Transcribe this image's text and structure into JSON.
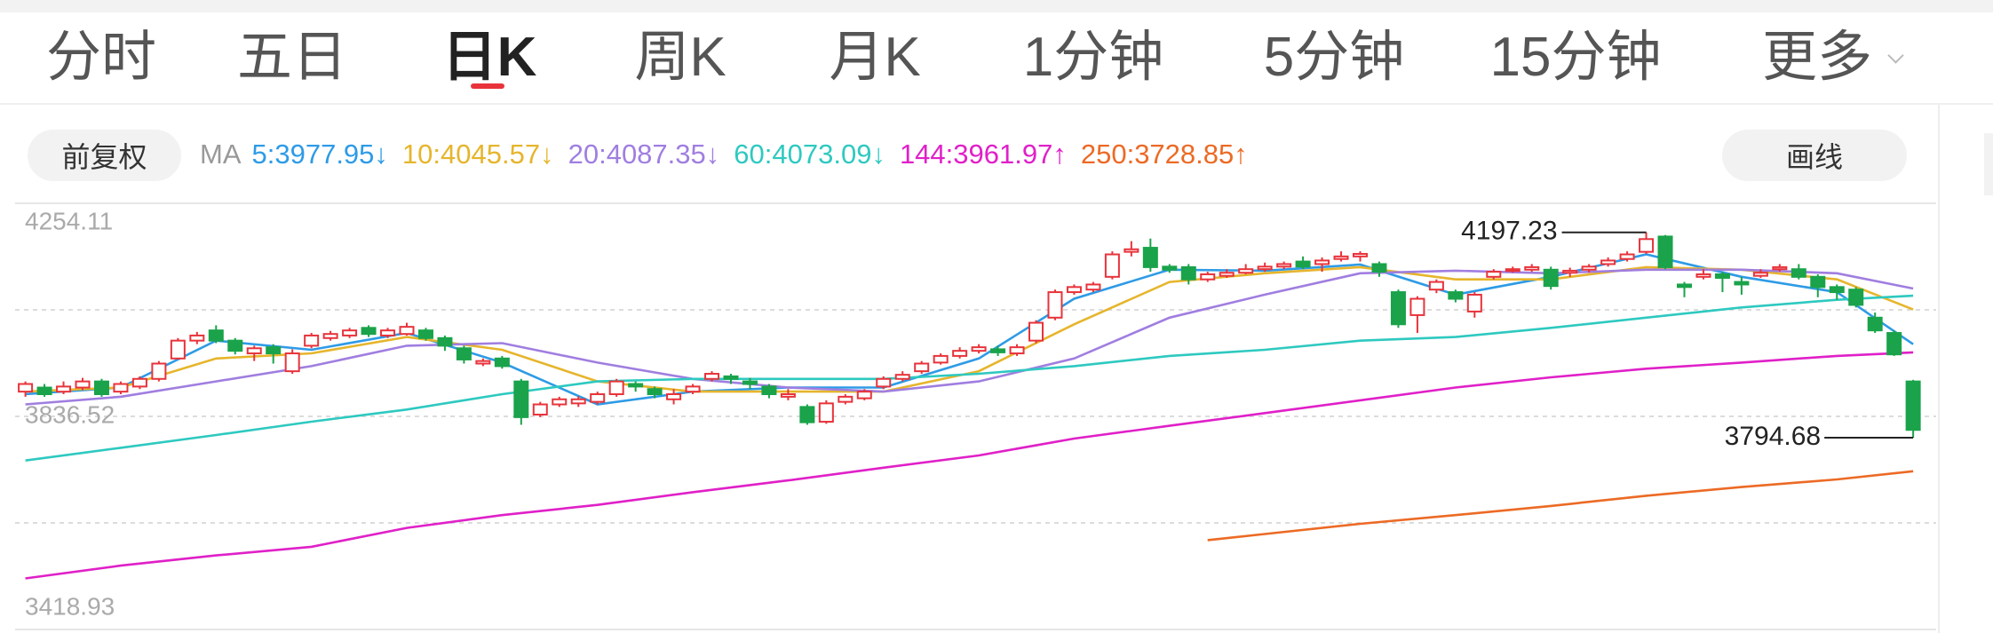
{
  "tabs": {
    "items": [
      "分时",
      "五日",
      "日K",
      "周K",
      "月K",
      "1分钟",
      "5分钟",
      "15分钟",
      "更多"
    ],
    "active": 2
  },
  "toolbar": {
    "adjust": "前复权",
    "draw": "画线"
  },
  "chart_data": {
    "type": "candlestick",
    "ylim": [
      3418.93,
      4254.11
    ],
    "yticks": [
      4254.11,
      {
        "value": 4045.32,
        "label": null
      },
      3836.52,
      {
        "value": 3627.73,
        "label": null
      },
      3418.93
    ],
    "up_color": "#e8333b",
    "down_color": "#1aa34a",
    "open": [
      3885,
      3893,
      3885,
      3893,
      3905,
      3885,
      3895,
      3910,
      3950,
      3985,
      4005,
      3985,
      3960,
      3972,
      3925,
      3975,
      3990,
      3995,
      4010,
      3995,
      3998,
      4005,
      3990,
      3970,
      3940,
      3950,
      3905,
      3840,
      3860,
      3862,
      3865,
      3880,
      3900,
      3890,
      3870,
      3885,
      3910,
      3915,
      3905,
      3895,
      3875,
      3855,
      3826,
      3865,
      3872,
      3895,
      3910,
      3925,
      3942,
      3955,
      3965,
      3968,
      3960,
      3985,
      4030,
      4080,
      4085,
      4110,
      4159,
      4167,
      4130,
      4129,
      4105,
      4112,
      4118,
      4125,
      4130,
      4140,
      4135,
      4145,
      4150,
      4135,
      4080,
      4035,
      4085,
      4080,
      4042,
      4110,
      4122,
      4124,
      4124,
      4118,
      4124,
      4135,
      4145,
      4159,
      4189,
      4095,
      4110,
      4115,
      4100,
      4112,
      4125,
      4125,
      4110,
      4090,
      4085,
      4030,
      4000,
      3905
    ],
    "high": [
      3905,
      3900,
      3905,
      3912,
      3910,
      3905,
      3915,
      3945,
      3990,
      4002,
      4015,
      3990,
      3975,
      3978,
      3968,
      4000,
      4004,
      4010,
      4015,
      4010,
      4020,
      4010,
      3995,
      3975,
      3950,
      3955,
      3910,
      3865,
      3875,
      3876,
      3885,
      3910,
      3905,
      3895,
      3890,
      3900,
      3925,
      3920,
      3912,
      3900,
      3890,
      3860,
      3868,
      3880,
      3890,
      3915,
      3925,
      3945,
      3960,
      3972,
      3978,
      3975,
      3978,
      4025,
      4085,
      4095,
      4100,
      4160,
      4180,
      4185,
      4135,
      4135,
      4120,
      4125,
      4135,
      4138,
      4140,
      4150,
      4148,
      4160,
      4160,
      4140,
      4085,
      4072,
      4105,
      4085,
      4080,
      4125,
      4130,
      4135,
      4130,
      4128,
      4135,
      4148,
      4160,
      4197.23,
      4192,
      4100,
      4125,
      4120,
      4110,
      4125,
      4135,
      4135,
      4115,
      4095,
      4090,
      4040,
      4005,
      3908
    ],
    "low": [
      3875,
      3875,
      3880,
      3888,
      3875,
      3880,
      3890,
      3905,
      3948,
      3978,
      3980,
      3958,
      3945,
      3940,
      3920,
      3970,
      3985,
      3990,
      3992,
      3990,
      3995,
      3985,
      3965,
      3940,
      3935,
      3930,
      3820,
      3835,
      3855,
      3855,
      3860,
      3875,
      3885,
      3872,
      3860,
      3880,
      3905,
      3900,
      3890,
      3872,
      3868,
      3820,
      3822,
      3860,
      3868,
      3890,
      3905,
      3920,
      3938,
      3950,
      3960,
      3955,
      3955,
      3980,
      4025,
      4075,
      4080,
      4105,
      4150,
      4120,
      4118,
      4095,
      4100,
      4108,
      4115,
      4120,
      4125,
      4125,
      4120,
      4140,
      4140,
      4110,
      4010,
      4000,
      4078,
      4060,
      4030,
      4105,
      4118,
      4120,
      4085,
      4110,
      4118,
      4130,
      4140,
      4155,
      4125,
      4070,
      4105,
      4080,
      4075,
      4108,
      4120,
      4105,
      4070,
      4065,
      4050,
      4000,
      3955,
      3794.68
    ],
    "close": [
      3900,
      3880,
      3895,
      3905,
      3880,
      3900,
      3910,
      3940,
      3985,
      3995,
      3985,
      3965,
      3970,
      3960,
      3960,
      3995,
      3998,
      4005,
      3998,
      4005,
      4012,
      3990,
      3975,
      3948,
      3945,
      3935,
      3835,
      3860,
      3870,
      3870,
      3880,
      3905,
      3895,
      3880,
      3880,
      3895,
      3920,
      3910,
      3900,
      3880,
      3880,
      3825,
      3862,
      3875,
      3885,
      3910,
      3918,
      3940,
      3955,
      3965,
      3972,
      3962,
      3972,
      4020,
      4080,
      4090,
      4095,
      4154,
      4164,
      4129,
      4124,
      4105,
      4115,
      4118,
      4125,
      4130,
      4135,
      4130,
      4142,
      4150,
      4155,
      4120,
      4017,
      4067,
      4100,
      4067,
      4075,
      4120,
      4125,
      4129,
      4092,
      4122,
      4130,
      4142,
      4154,
      4184,
      4129,
      4090,
      4115,
      4108,
      4095,
      4118,
      4129,
      4110,
      4090,
      4080,
      4055,
      4005,
      3958,
      3810
    ],
    "ma_title": "MA",
    "ma": [
      {
        "name": "5:",
        "value": 3977.95,
        "trend": "↓",
        "color": "#2e9be6",
        "x": [
          0,
          5,
          10,
          15,
          20,
          25,
          30,
          35,
          40,
          45,
          50,
          55,
          60,
          65,
          70,
          75,
          80,
          85,
          90,
          95,
          99
        ],
        "values": [
          3880,
          3893,
          3985,
          3967,
          4000,
          3942,
          3860,
          3885,
          3893,
          3893,
          3950,
          4067,
          4124,
          4122,
          4134,
          4075,
          4110,
          4154,
          4110,
          4080,
          3978
        ]
      },
      {
        "name": "10:",
        "value": 4045.57,
        "trend": "↓",
        "color": "#e6b52c",
        "x": [
          0,
          5,
          10,
          15,
          20,
          25,
          30,
          35,
          40,
          45,
          50,
          55,
          60,
          65,
          70,
          75,
          80,
          85,
          90,
          95,
          99
        ],
        "values": [
          3885,
          3893,
          3950,
          3960,
          3992,
          3967,
          3905,
          3885,
          3885,
          3885,
          3925,
          4017,
          4100,
          4117,
          4129,
          4105,
          4105,
          4129,
          4124,
          4105,
          4046
        ]
      },
      {
        "name": "20:",
        "value": 4087.35,
        "trend": "↓",
        "color": "#a07ee0",
        "x": [
          0,
          5,
          10,
          15,
          20,
          25,
          30,
          35,
          40,
          45,
          50,
          55,
          60,
          65,
          70,
          75,
          80,
          85,
          90,
          95,
          99
        ],
        "values": [
          3860,
          3875,
          3905,
          3935,
          3975,
          3980,
          3942,
          3910,
          3893,
          3885,
          3905,
          3950,
          4030,
          4075,
          4117,
          4122,
          4117,
          4124,
          4124,
          4117,
          4087
        ]
      },
      {
        "name": "60:",
        "value": 4073.09,
        "trend": "↓",
        "color": "#2ec9c0",
        "x": [
          0,
          5,
          10,
          15,
          20,
          25,
          30,
          35,
          40,
          45,
          50,
          55,
          60,
          65,
          70,
          75,
          80,
          85,
          90,
          95,
          99
        ],
        "values": [
          3750,
          3775,
          3800,
          3826,
          3850,
          3880,
          3905,
          3910,
          3910,
          3910,
          3920,
          3935,
          3955,
          3967,
          3985,
          3992,
          4010,
          4030,
          4050,
          4065,
          4073
        ]
      },
      {
        "name": "144:",
        "value": 3961.97,
        "trend": "↑",
        "color": "#e020c8",
        "x": [
          0,
          5,
          10,
          15,
          20,
          25,
          30,
          35,
          40,
          45,
          50,
          55,
          60,
          65,
          70,
          75,
          80,
          85,
          90,
          95,
          99
        ],
        "values": [
          3519,
          3544,
          3564,
          3581,
          3618,
          3643,
          3663,
          3688,
          3711,
          3736,
          3760,
          3793,
          3818,
          3843,
          3868,
          3893,
          3913,
          3930,
          3942,
          3955,
          3962
        ]
      },
      {
        "name": "250:",
        "value": 3728.85,
        "trend": "↑",
        "color": "#ec6a25",
        "x": [
          62,
          65,
          70,
          75,
          80,
          85,
          90,
          95,
          99
        ],
        "values": [
          3594,
          3606,
          3626,
          3643,
          3661,
          3681,
          3698,
          3713,
          3729
        ]
      }
    ],
    "marked_high": 85,
    "marked_low": 99
  }
}
